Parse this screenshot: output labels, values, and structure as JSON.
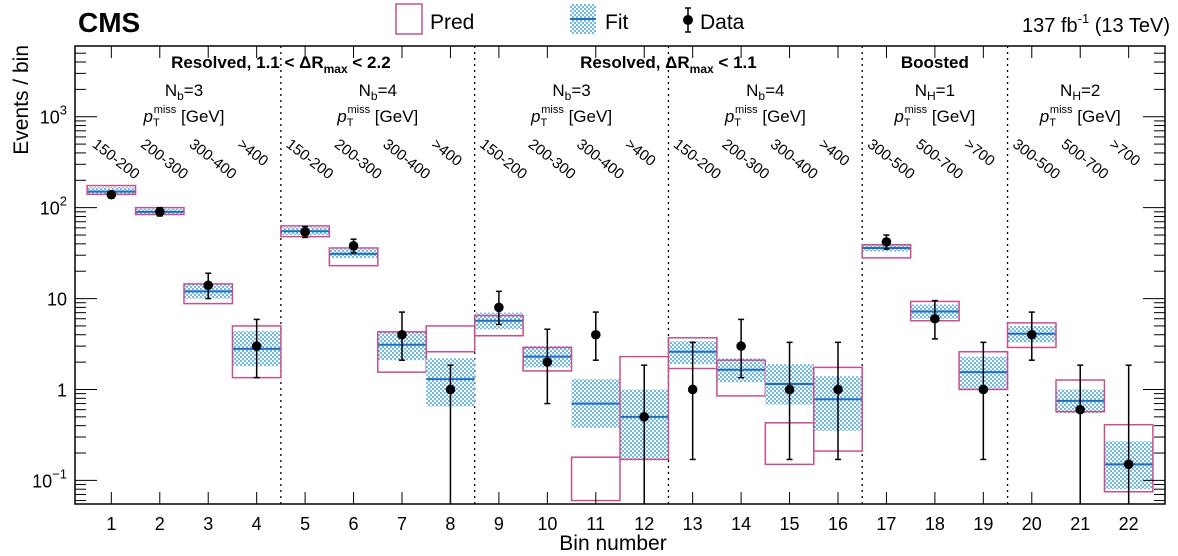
{
  "header": {
    "experiment": "CMS",
    "lumi_value": "137 fb",
    "lumi_exp": "-1",
    "lumi_energy": " (13 TeV)"
  },
  "legend": {
    "pred": "Pred",
    "fit": "Fit",
    "data": "Data"
  },
  "regions": {
    "r1_title": "Resolved, 1.1 < ΔR",
    "r1_sub": "max",
    "r1_tail": " < 2.2",
    "r2_title": "Resolved, ΔR",
    "r2_sub": "max",
    "r2_tail": " < 1.1",
    "r3_title": "Boosted",
    "labels": [
      {
        "main": "N",
        "sub": "b",
        "val": "=3"
      },
      {
        "main": "N",
        "sub": "b",
        "val": "=4"
      },
      {
        "main": "N",
        "sub": "b",
        "val": "=3"
      },
      {
        "main": "N",
        "sub": "b",
        "val": "=4"
      },
      {
        "main": "N",
        "sub": "H",
        "val": "=1"
      },
      {
        "main": "N",
        "sub": "H",
        "val": "=2"
      }
    ],
    "ptmiss_p": "p",
    "ptmiss_sub": "T",
    "ptmiss_sup": "miss",
    "ptmiss_unit": " [GeV]"
  },
  "bin_labels": [
    "150-200",
    "200-300",
    "300-400",
    ">400",
    "150-200",
    "200-300",
    "300-400",
    ">400",
    "150-200",
    "200-300",
    "300-400",
    ">400",
    "150-200",
    "200-300",
    "300-400",
    ">400",
    "300-500",
    "500-700",
    ">700",
    "300-500",
    "500-700",
    ">700"
  ],
  "chart_data": {
    "type": "bar",
    "xlabel": "Bin number",
    "ylabel": "Events / bin",
    "yscale": "log",
    "ylim": [
      0.055,
      6000
    ],
    "x_ticks": [
      "1",
      "2",
      "3",
      "4",
      "5",
      "6",
      "7",
      "8",
      "9",
      "10",
      "11",
      "12",
      "13",
      "14",
      "15",
      "16",
      "17",
      "18",
      "19",
      "20",
      "21",
      "22"
    ],
    "y_ticks": [
      {
        "value": 0.1,
        "base": "10",
        "exp": "−1"
      },
      {
        "value": 1,
        "base": "1",
        "exp": ""
      },
      {
        "value": 10,
        "base": "10",
        "exp": ""
      },
      {
        "value": 100,
        "base": "10",
        "exp": "2"
      },
      {
        "value": 1000,
        "base": "10",
        "exp": "3"
      }
    ],
    "region_boundaries": [
      4.5,
      8.5,
      12.5,
      16.5,
      19.5
    ],
    "series": [
      {
        "name": "Pred",
        "bins": [
          {
            "low": 140,
            "high": 175
          },
          {
            "low": 84,
            "high": 100
          },
          {
            "low": 8.8,
            "high": 14.5
          },
          {
            "low": 1.35,
            "high": 5.0
          },
          {
            "low": 48,
            "high": 63
          },
          {
            "low": 23,
            "high": 36
          },
          {
            "low": 1.55,
            "high": 4.3
          },
          {
            "low": 2.6,
            "high": 5.0
          },
          {
            "low": 3.9,
            "high": 6.5
          },
          {
            "low": 1.6,
            "high": 2.9
          },
          {
            "low": 0.06,
            "high": 0.18
          },
          {
            "low": 0.17,
            "high": 2.3
          },
          {
            "low": 1.7,
            "high": 3.7
          },
          {
            "low": 0.85,
            "high": 2.1
          },
          {
            "low": 0.15,
            "high": 0.43
          },
          {
            "low": 0.21,
            "high": 1.75
          },
          {
            "low": 28,
            "high": 39
          },
          {
            "low": 5.7,
            "high": 9.3
          },
          {
            "low": 1.0,
            "high": 2.6
          },
          {
            "low": 2.9,
            "high": 5.4
          },
          {
            "low": 0.57,
            "high": 1.27
          },
          {
            "low": 0.075,
            "high": 0.41
          }
        ]
      },
      {
        "name": "Fit",
        "bins": [
          {
            "center": 150,
            "low": 143,
            "high": 168
          },
          {
            "center": 90,
            "low": 84,
            "high": 97
          },
          {
            "center": 12,
            "low": 10,
            "high": 14.5
          },
          {
            "center": 2.8,
            "low": 1.8,
            "high": 4.4
          },
          {
            "center": 55,
            "low": 50,
            "high": 61
          },
          {
            "center": 31,
            "low": 28,
            "high": 35
          },
          {
            "center": 3.1,
            "low": 2.1,
            "high": 4.4
          },
          {
            "center": 1.3,
            "low": 0.65,
            "high": 2.2
          },
          {
            "center": 5.7,
            "low": 4.6,
            "high": 7.0
          },
          {
            "center": 2.3,
            "low": 1.75,
            "high": 3.0
          },
          {
            "center": 0.7,
            "low": 0.38,
            "high": 1.3
          },
          {
            "center": 0.5,
            "low": 0.17,
            "high": 1.0
          },
          {
            "center": 2.6,
            "low": 1.9,
            "high": 3.4
          },
          {
            "center": 1.65,
            "low": 1.2,
            "high": 2.2
          },
          {
            "center": 1.15,
            "low": 0.68,
            "high": 1.9
          },
          {
            "center": 0.78,
            "low": 0.35,
            "high": 1.4
          },
          {
            "center": 36,
            "low": 33,
            "high": 40
          },
          {
            "center": 7.2,
            "low": 6.0,
            "high": 8.6
          },
          {
            "center": 1.55,
            "low": 1.0,
            "high": 2.3
          },
          {
            "center": 4.1,
            "low": 3.3,
            "high": 5.0
          },
          {
            "center": 0.75,
            "low": 0.55,
            "high": 1.0
          },
          {
            "center": 0.15,
            "low": 0.08,
            "high": 0.27
          }
        ]
      },
      {
        "name": "Data",
        "points": [
          {
            "x": 1,
            "y": 139,
            "err_low": 127,
            "err_high": 151
          },
          {
            "x": 2,
            "y": 90,
            "err_low": 81,
            "err_high": 100
          },
          {
            "x": 3,
            "y": 14,
            "err_low": 10,
            "err_high": 19
          },
          {
            "x": 4,
            "y": 3,
            "err_low": 1.35,
            "err_high": 5.9
          },
          {
            "x": 5,
            "y": 54,
            "err_low": 47,
            "err_high": 62
          },
          {
            "x": 6,
            "y": 38,
            "err_low": 32,
            "err_high": 45
          },
          {
            "x": 7,
            "y": 4,
            "err_low": 2.1,
            "err_high": 7.1
          },
          {
            "x": 8,
            "y": 1,
            "err_low": 0.055,
            "err_high": 1.85
          },
          {
            "x": 9,
            "y": 8,
            "err_low": 5.2,
            "err_high": 12
          },
          {
            "x": 10,
            "y": 2,
            "err_low": 0.7,
            "err_high": 4.6
          },
          {
            "x": 11,
            "y": 4,
            "err_low": 2.1,
            "err_high": 7.1
          },
          {
            "x": 12,
            "y": 0.5,
            "err_low": 0.055,
            "err_high": 1.85
          },
          {
            "x": 13,
            "y": 1,
            "err_low": 0.17,
            "err_high": 3.3
          },
          {
            "x": 14,
            "y": 3,
            "err_low": 1.35,
            "err_high": 5.9
          },
          {
            "x": 15,
            "y": 1,
            "err_low": 0.17,
            "err_high": 3.3
          },
          {
            "x": 16,
            "y": 1,
            "err_low": 0.17,
            "err_high": 3.3
          },
          {
            "x": 17,
            "y": 42,
            "err_low": 35,
            "err_high": 50
          },
          {
            "x": 18,
            "y": 6,
            "err_low": 3.6,
            "err_high": 9.5
          },
          {
            "x": 19,
            "y": 1,
            "err_low": 0.17,
            "err_high": 3.3
          },
          {
            "x": 20,
            "y": 4,
            "err_low": 2.1,
            "err_high": 7.1
          },
          {
            "x": 21,
            "y": 0.6,
            "err_low": 0.055,
            "err_high": 1.85
          },
          {
            "x": 22,
            "y": 0.15,
            "err_low": 0.055,
            "err_high": 1.85
          }
        ]
      }
    ],
    "colors": {
      "pred": "#c8508a",
      "fit_fill": "#6fb8ea",
      "fit_center": "#1f6fbf",
      "data": "#000000"
    }
  }
}
